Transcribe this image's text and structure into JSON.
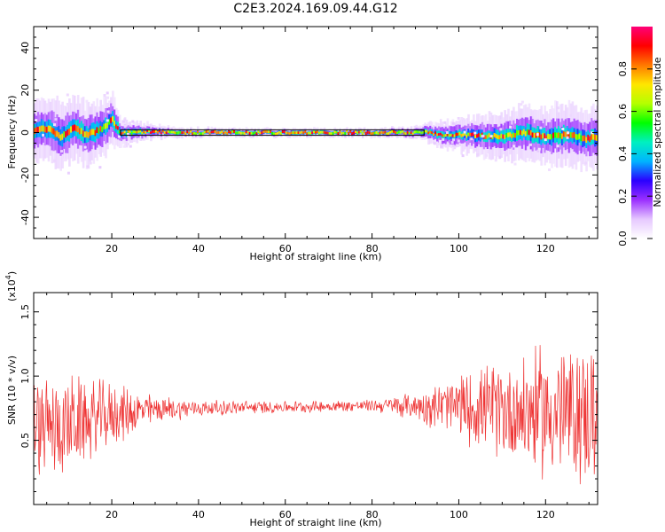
{
  "title": "C2E3.2024.169.09.44.G12",
  "chart_data": [
    {
      "type": "heatmap",
      "xlabel": "Height of straight line (km)",
      "ylabel": "Frequency (Hz)",
      "xlim": [
        2,
        132
      ],
      "ylim": [
        -50,
        50
      ],
      "xticks": [
        20,
        40,
        60,
        80,
        100,
        120
      ],
      "yticks": [
        -40,
        -20,
        0,
        20,
        40
      ],
      "colorbar": {
        "label": "Normalized spectral amplitude",
        "range": [
          0,
          1
        ],
        "ticks": [
          0.0,
          0.2,
          0.4,
          0.6,
          0.8
        ],
        "colors": [
          "#ffffff",
          "#e6c8ff",
          "#9b30ff",
          "#2a00ff",
          "#00b4ff",
          "#00f0c0",
          "#00ff00",
          "#b4ff00",
          "#ffe600",
          "#ff7800",
          "#ff0000",
          "#ff0078"
        ]
      },
      "peak_trace": {
        "x": [
          2,
          5,
          8,
          11,
          14,
          17,
          20,
          21,
          22,
          30,
          40,
          60,
          80,
          90,
          92,
          95,
          100,
          105,
          110,
          115,
          120,
          125,
          129,
          132
        ],
        "y": [
          0.5,
          2,
          -2,
          2,
          -1,
          1,
          6,
          2,
          0,
          0.3,
          0,
          0,
          0,
          0,
          0.5,
          -1,
          -1,
          -1.5,
          -2,
          0,
          -2,
          -1,
          -3,
          -2
        ]
      },
      "spread_hz": {
        "x": [
          2,
          10,
          20,
          22,
          30,
          40,
          80,
          90,
          95,
          105,
          115,
          132
        ],
        "y": [
          14,
          15,
          13,
          6,
          3,
          2,
          2,
          3,
          6,
          9,
          12,
          14
        ]
      },
      "box": {
        "x": [
          22,
          92
        ],
        "y": [
          -1.3,
          1.3
        ]
      }
    },
    {
      "type": "line",
      "xlabel": "Height of straight line (km)",
      "ylabel": "SNR (10 * v/v)",
      "yunit": "(x10^4)",
      "xlim": [
        2,
        132
      ],
      "ylim": [
        0,
        1.65
      ],
      "xticks": [
        20,
        40,
        60,
        80,
        100,
        120
      ],
      "yticks": [
        0.5,
        1.0,
        1.5
      ],
      "color": "#ee3333",
      "envelope": {
        "x": [
          2,
          10,
          20,
          30,
          40,
          60,
          80,
          90,
          100,
          110,
          120,
          132
        ],
        "mean": [
          0.58,
          0.62,
          0.7,
          0.74,
          0.75,
          0.76,
          0.77,
          0.77,
          0.76,
          0.74,
          0.72,
          0.7
        ],
        "amp": [
          0.45,
          0.42,
          0.28,
          0.12,
          0.07,
          0.05,
          0.05,
          0.12,
          0.28,
          0.42,
          0.58,
          0.62
        ]
      }
    }
  ]
}
